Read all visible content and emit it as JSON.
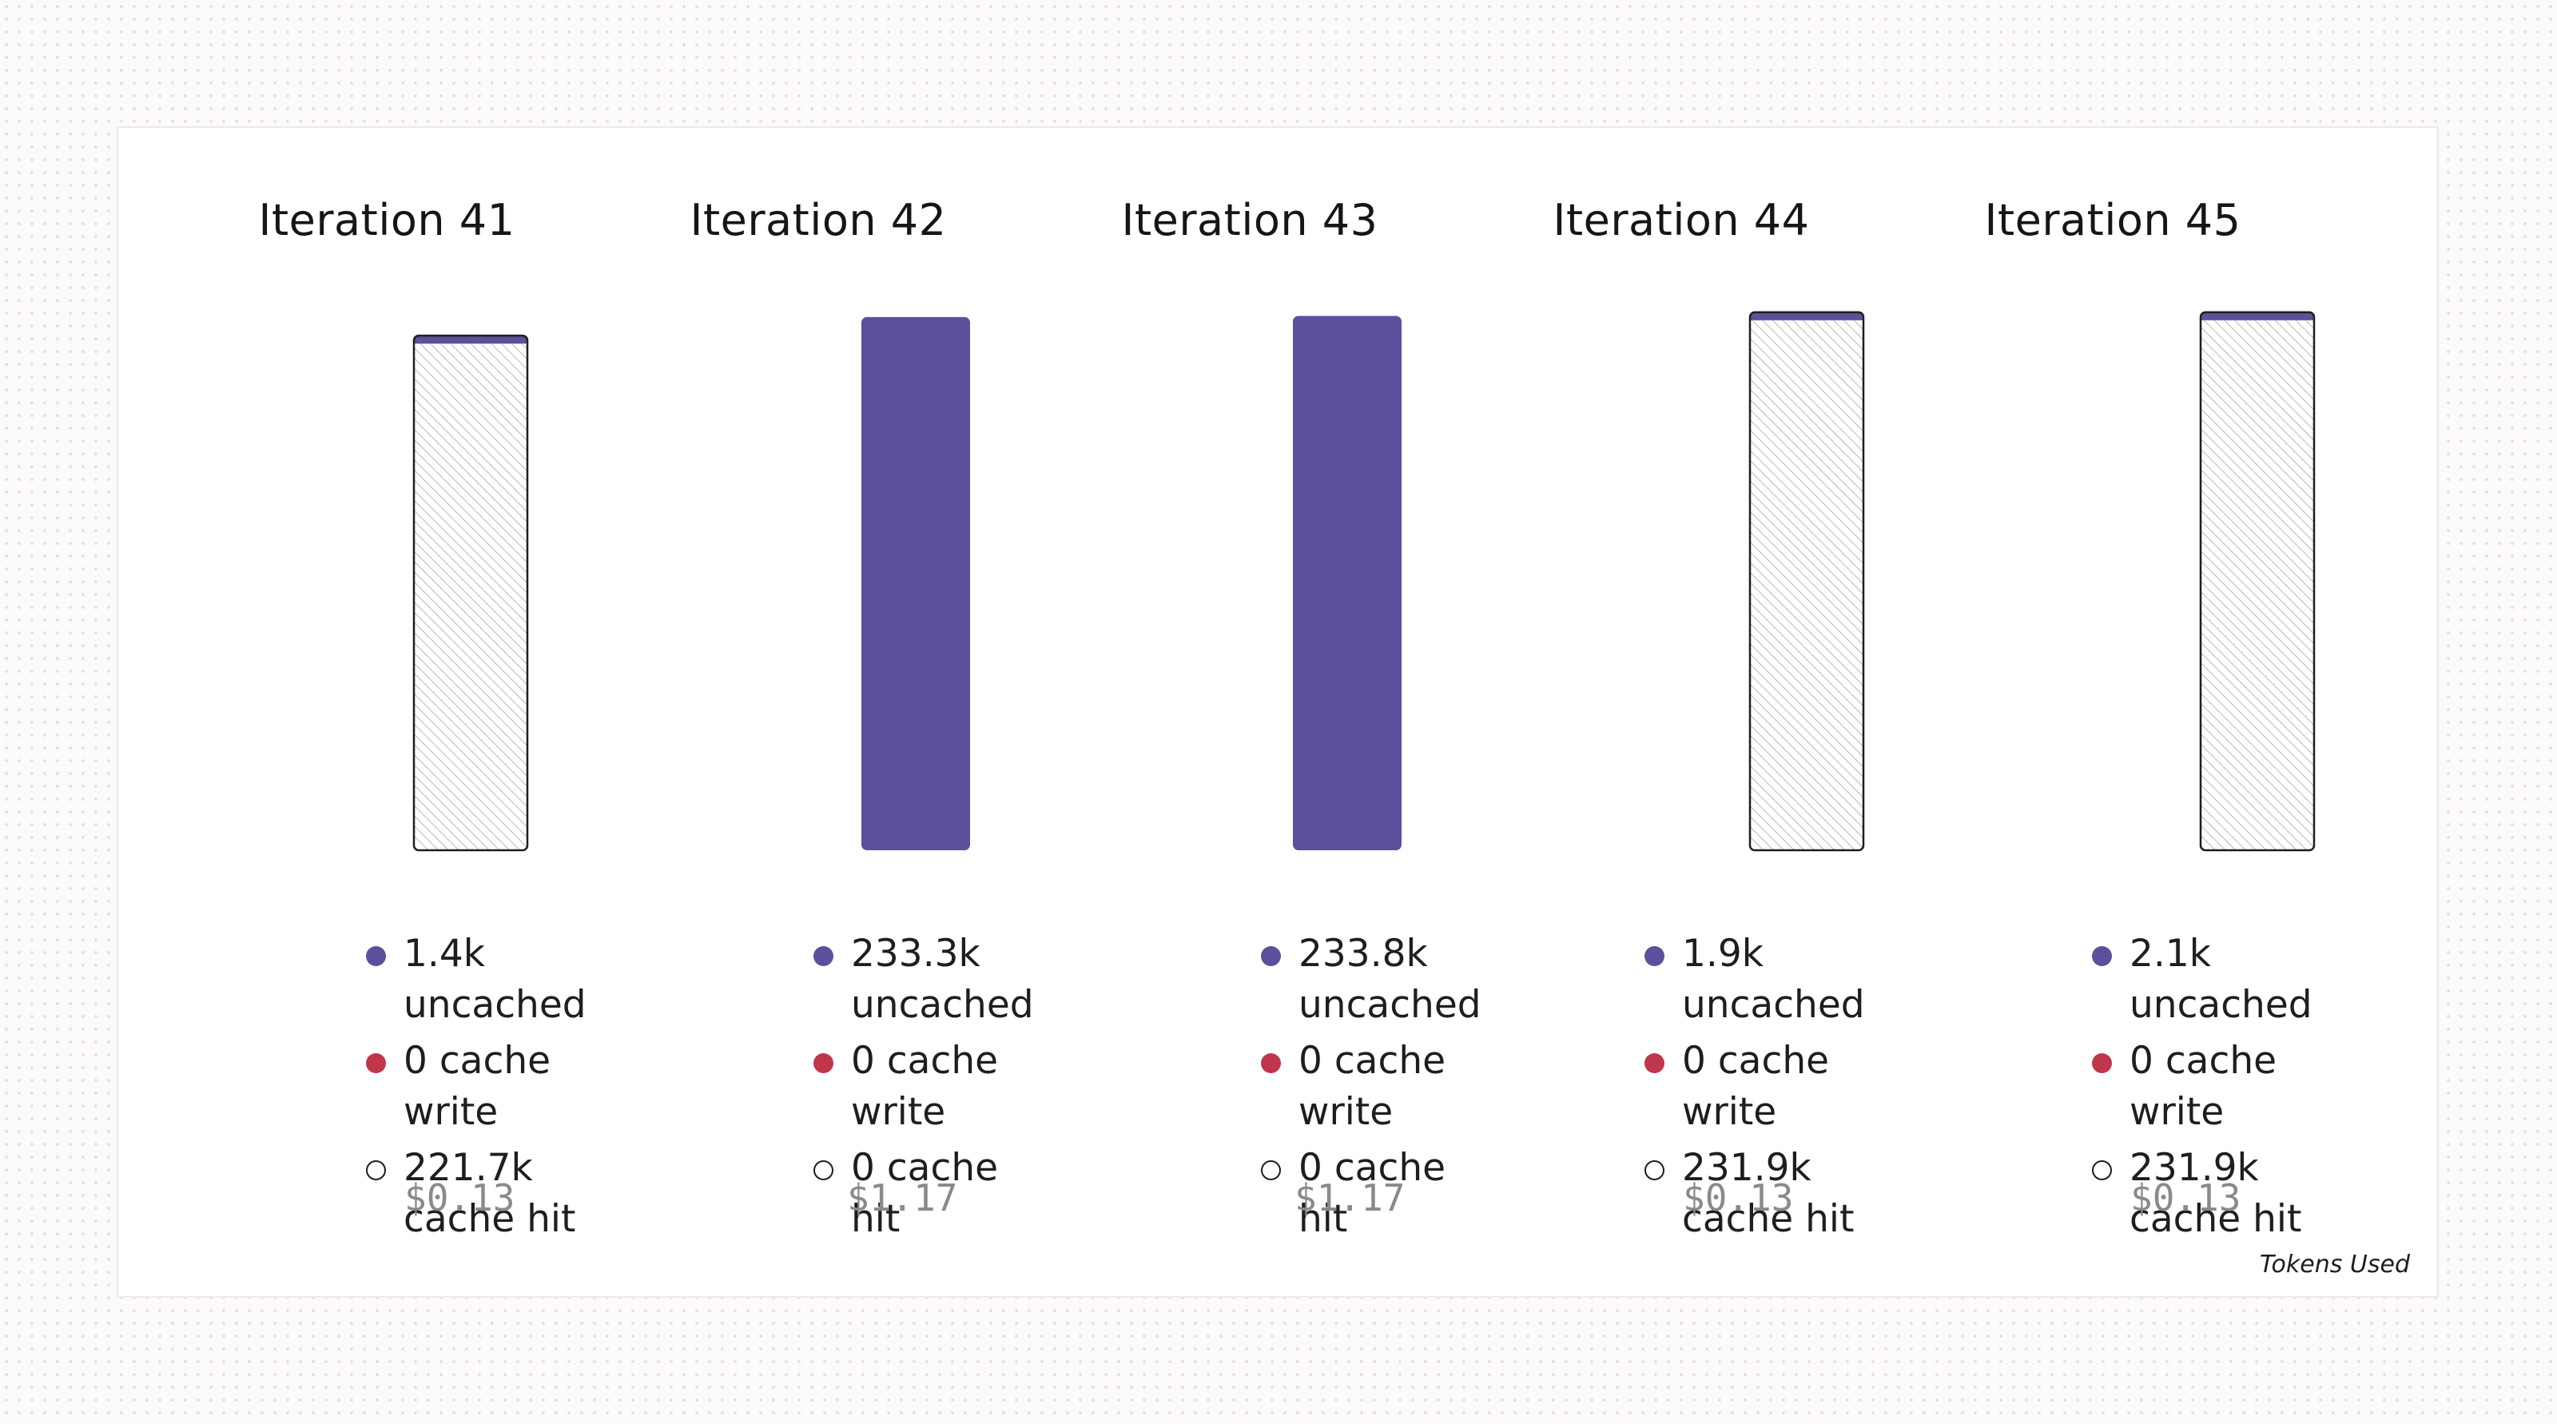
{
  "chart_data": {
    "type": "bar",
    "stacked": true,
    "categories": [
      "Iteration 41",
      "Iteration 42",
      "Iteration 43",
      "Iteration 44",
      "Iteration 45"
    ],
    "series": [
      {
        "name": "uncached",
        "color": "#5c4f9b",
        "values": [
          1.4,
          233.3,
          233.8,
          1.9,
          2.1
        ]
      },
      {
        "name": "cache write",
        "color": "#c0364a",
        "values": [
          0,
          0,
          0,
          0,
          0
        ]
      },
      {
        "name": "cache hit",
        "color": "#ffffff",
        "values": [
          221.7,
          0,
          0,
          231.9,
          231.9
        ]
      }
    ],
    "unit": "k",
    "legend_labels": [
      [
        "1.4k uncached",
        "0 cache write",
        "221.7k cache hit"
      ],
      [
        "233.3k uncached",
        "0 cache write",
        "0 cache hit"
      ],
      [
        "233.8k uncached",
        "0 cache write",
        "0 cache hit"
      ],
      [
        "1.9k uncached",
        "0 cache write",
        "231.9k cache hit"
      ],
      [
        "2.1k uncached",
        "0 cache write",
        "231.9k cache hit"
      ]
    ],
    "costs": [
      "$0.13",
      "$1.17",
      "$1.17",
      "$0.13",
      "$0.13"
    ],
    "footer_label": "Tokens Used",
    "colors": {
      "uncached": "#5c4f9b",
      "cache_write": "#c0364a",
      "cache_hit_outline": "#1e1e1e",
      "hatch": "#bdbdbd"
    }
  }
}
